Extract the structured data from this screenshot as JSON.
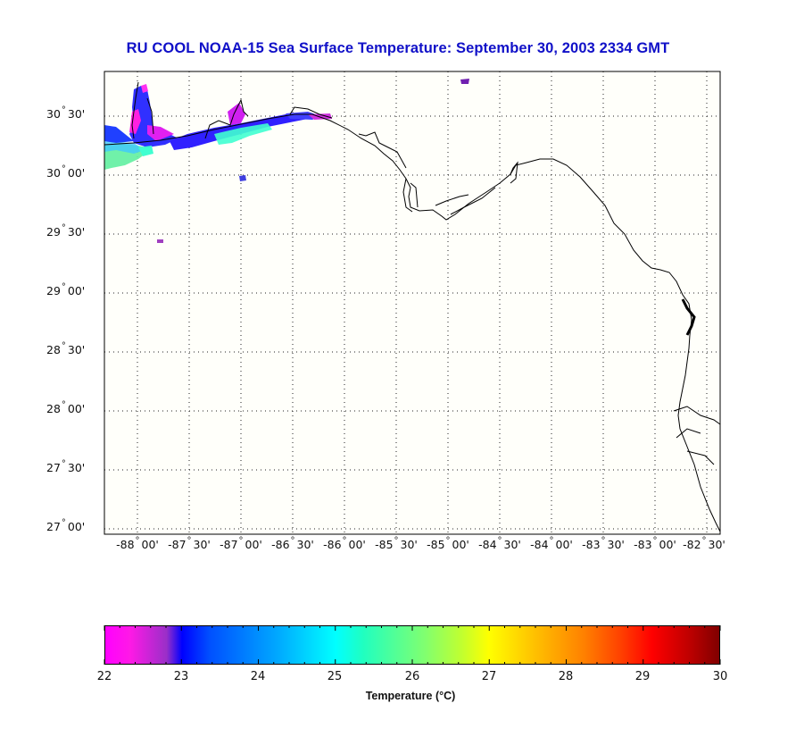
{
  "title": "RU COOL  NOAA-15  Sea Surface Temperature:  September 30, 2003 2334 GMT",
  "map": {
    "lat_labels": [
      "30° 30'",
      "30° 00'",
      "29° 30'",
      "29° 00'",
      "28° 30'",
      "28° 00'",
      "27° 30'",
      "27° 00'"
    ],
    "lat_parts": [
      {
        "deg": "30",
        "min": "30'"
      },
      {
        "deg": "30",
        "min": "00'"
      },
      {
        "deg": "29",
        "min": "30'"
      },
      {
        "deg": "29",
        "min": "00'"
      },
      {
        "deg": "28",
        "min": "30'"
      },
      {
        "deg": "28",
        "min": "00'"
      },
      {
        "deg": "27",
        "min": "30'"
      },
      {
        "deg": "27",
        "min": "00'"
      }
    ],
    "lon_parts": [
      {
        "deg": "-88",
        "min": "00'"
      },
      {
        "deg": "-87",
        "min": "30'"
      },
      {
        "deg": "-87",
        "min": "00'"
      },
      {
        "deg": "-86",
        "min": "30'"
      },
      {
        "deg": "-86",
        "min": "00'"
      },
      {
        "deg": "-85",
        "min": "30'"
      },
      {
        "deg": "-85",
        "min": "00'"
      },
      {
        "deg": "-84",
        "min": "30'"
      },
      {
        "deg": "-84",
        "min": "00'"
      },
      {
        "deg": "-83",
        "min": "30'"
      },
      {
        "deg": "-83",
        "min": "00'"
      },
      {
        "deg": "-82",
        "min": "30'"
      }
    ],
    "degree_symbol": "°",
    "background_color": "#fffffa",
    "coast_color": "#000000"
  },
  "colorbar": {
    "title": "Temperature (°C)",
    "ticks": [
      "22",
      "23",
      "24",
      "25",
      "26",
      "27",
      "28",
      "29",
      "30"
    ],
    "range": [
      22,
      30
    ],
    "colors": [
      "#ff00ff",
      "#ff19e6",
      "#9a2fc8",
      "#0000ff",
      "#0050ff",
      "#00a8ff",
      "#00ffff",
      "#20ffc0",
      "#80ff70",
      "#c0ff30",
      "#ffff00",
      "#ffc000",
      "#ff8000",
      "#ff4000",
      "#ff0000",
      "#c00000",
      "#800000"
    ]
  }
}
